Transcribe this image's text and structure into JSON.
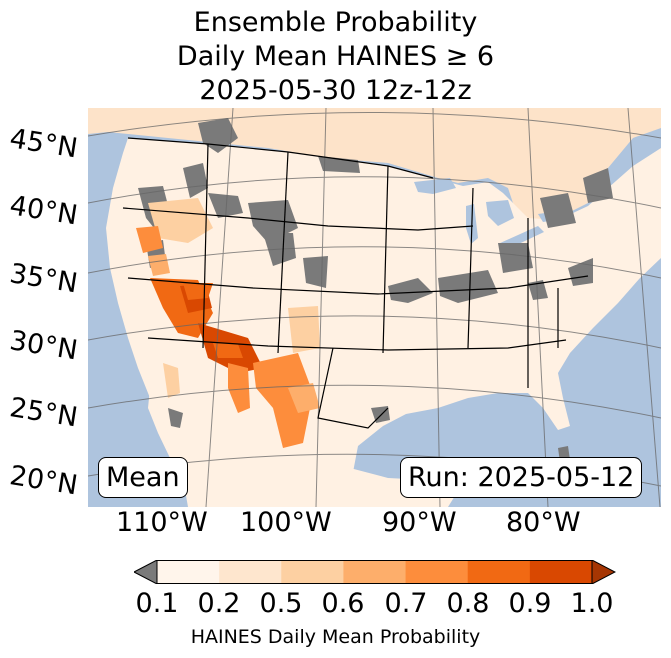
{
  "title": {
    "line1": "Ensemble Probability",
    "line2": "Daily Mean HAINES ≥ 6",
    "line3": "2025-05-30 12z-12z"
  },
  "map": {
    "latitude_labels": [
      "45°N",
      "40°N",
      "35°N",
      "30°N",
      "25°N",
      "20°N"
    ],
    "longitude_labels": [
      "110°W",
      "100°W",
      "90°W",
      "80°W"
    ],
    "mean_label": "Mean",
    "run_label": "Run: 2025-05-12",
    "colors": {
      "ocean": "#aec4de",
      "land_background": "#fff1e3",
      "gray_missing": "#7a7a7a",
      "bins": [
        "#fff5eb",
        "#fee6ce",
        "#fdd0a2",
        "#fdae6b",
        "#fd8d3c",
        "#f16913",
        "#d94801",
        "#a63603"
      ]
    }
  },
  "colorbar": {
    "ticks": [
      "0.1",
      "0.2",
      "0.5",
      "0.6",
      "0.7",
      "0.8",
      "0.9",
      "1.0"
    ],
    "label": "HAINES Daily Mean Probability",
    "colors": [
      "#fff5eb",
      "#fee6ce",
      "#fdd0a2",
      "#fdae6b",
      "#fd8d3c",
      "#f16913",
      "#d94801"
    ],
    "under_color": "#7a7a7a",
    "over_color": "#a63603"
  }
}
